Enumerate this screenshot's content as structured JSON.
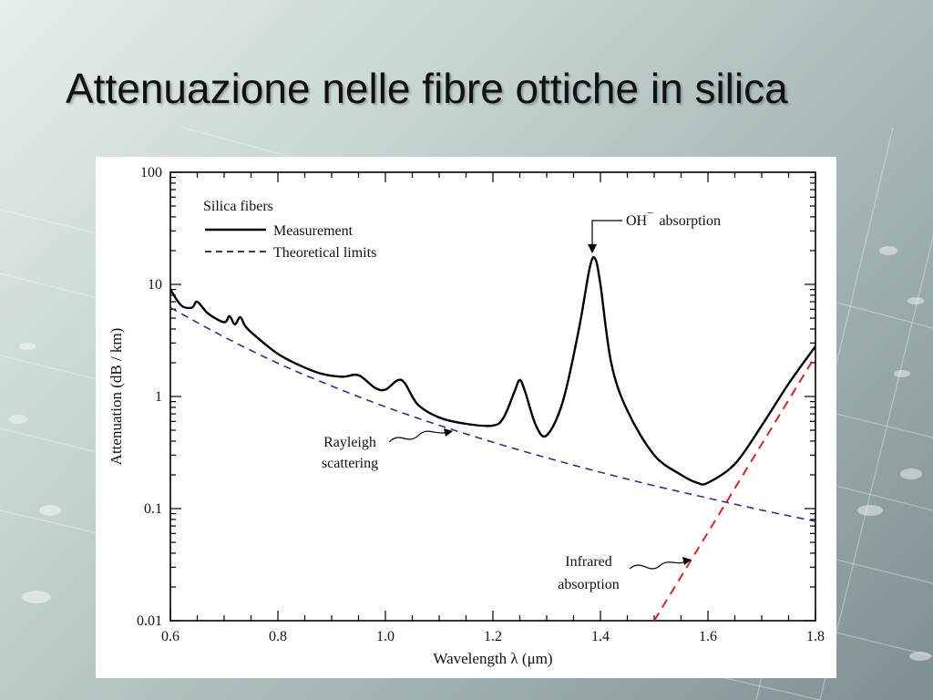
{
  "slide": {
    "title": "Attenuazione nelle fibre ottiche in silica"
  },
  "chart_data": {
    "type": "line",
    "xlabel": "Wavelength  λ  (μm)",
    "ylabel": "Attenuation  (dB / km)",
    "xlim": [
      0.6,
      1.8
    ],
    "ylim": [
      0.01,
      100
    ],
    "yscale": "log",
    "x_ticks": [
      "0.6",
      "0.8",
      "1.0",
      "1.2",
      "1.4",
      "1.6",
      "1.8"
    ],
    "y_ticks": [
      "0.01",
      "0.1",
      "1",
      "10",
      "100"
    ],
    "legend": {
      "title": "Silica fibers",
      "placement": "top-left",
      "entries": [
        "Measurement",
        "Theoretical limits"
      ]
    },
    "colors": {
      "measurement": "#000000",
      "rayleigh": "#2e2e8f",
      "infrared": "#e02020"
    },
    "series": [
      {
        "name": "Measurement",
        "style": "solid",
        "x": [
          0.6,
          0.62,
          0.64,
          0.65,
          0.67,
          0.7,
          0.71,
          0.72,
          0.73,
          0.74,
          0.76,
          0.8,
          0.84,
          0.88,
          0.92,
          0.95,
          0.98,
          1.0,
          1.03,
          1.06,
          1.1,
          1.15,
          1.2,
          1.22,
          1.24,
          1.25,
          1.26,
          1.28,
          1.3,
          1.33,
          1.36,
          1.38,
          1.39,
          1.4,
          1.42,
          1.45,
          1.5,
          1.55,
          1.58,
          1.6,
          1.65,
          1.7,
          1.75,
          1.8
        ],
        "y": [
          9.0,
          6.5,
          6.2,
          7.0,
          5.5,
          4.6,
          5.2,
          4.4,
          5.1,
          4.2,
          3.4,
          2.4,
          1.9,
          1.6,
          1.5,
          1.55,
          1.2,
          1.15,
          1.4,
          0.85,
          0.65,
          0.57,
          0.55,
          0.65,
          1.1,
          1.4,
          1.1,
          0.55,
          0.45,
          0.9,
          4.0,
          14.0,
          17.0,
          10.0,
          2.0,
          0.75,
          0.3,
          0.2,
          0.17,
          0.17,
          0.25,
          0.55,
          1.3,
          2.8
        ]
      },
      {
        "name": "Rayleigh scattering",
        "style": "dashed",
        "x": [
          0.6,
          0.7,
          0.8,
          0.9,
          1.0,
          1.1,
          1.2,
          1.3,
          1.4,
          1.5,
          1.6,
          1.7,
          1.8
        ],
        "y": [
          6.2,
          3.4,
          1.98,
          1.24,
          0.81,
          0.553,
          0.391,
          0.284,
          0.211,
          0.16,
          0.124,
          0.0969,
          0.077
        ]
      },
      {
        "name": "Infrared absorption",
        "style": "dashed",
        "x": [
          1.5,
          1.8
        ],
        "y": [
          0.01,
          2.3
        ]
      }
    ],
    "annotations": [
      {
        "text": "OH",
        "superscript": "−",
        "suffix": "absorption",
        "x": 1.39,
        "y": 17.0
      },
      {
        "text_lines": [
          "Rayleigh",
          "scattering"
        ],
        "x": 1.13,
        "y": 0.55
      },
      {
        "text_lines": [
          "Infrared",
          "absorption"
        ],
        "x": 1.56,
        "y": 0.035
      }
    ]
  }
}
